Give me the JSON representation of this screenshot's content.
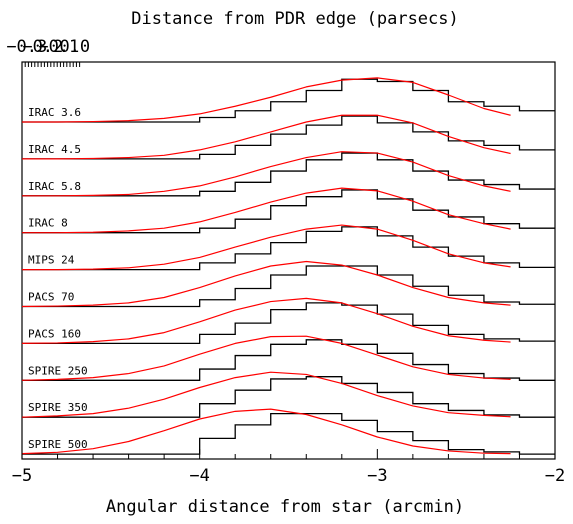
{
  "chart_data": {
    "type": "line",
    "title": "",
    "xlabel": "Angular distance from star (arcmin)",
    "x2label": "Distance from PDR edge (parsecs)",
    "ylabel": "",
    "xlim": [
      -5,
      -2
    ],
    "x_ticks": [
      -5,
      -4,
      -3,
      -2
    ],
    "x_tick_labels": [
      "−5",
      "−4",
      "−3",
      "−2"
    ],
    "x2_ticks": [
      -0.3,
      -0.2,
      -0.1,
      0.0
    ],
    "x2_tick_labels": [
      "−0.3",
      "−0.2",
      "−0.1",
      "0.0"
    ],
    "step_edges": [
      -5.0,
      -4.0,
      -3.8,
      -3.6,
      -3.4,
      -3.2,
      -3.0,
      -2.8,
      -2.6,
      -2.4,
      -2.2,
      -2.0
    ],
    "model_x": [
      -5.0,
      -4.8,
      -4.6,
      -4.4,
      -4.2,
      -4.0,
      -3.8,
      -3.6,
      -3.4,
      -3.2,
      -3.0,
      -2.8,
      -2.6,
      -2.4,
      -2.25
    ],
    "series": [
      {
        "name": "IRAC 3.6",
        "line_color": "#000000",
        "model_color": "#ff0000",
        "observed": [
          0.0,
          0.1,
          0.25,
          0.45,
          0.7,
          0.95,
          0.9,
          0.7,
          0.45,
          0.35,
          0.25
        ],
        "model": [
          0.0,
          0.0,
          0.01,
          0.03,
          0.08,
          0.18,
          0.35,
          0.55,
          0.78,
          0.93,
          0.98,
          0.88,
          0.6,
          0.3,
          0.15
        ]
      },
      {
        "name": "IRAC 4.5",
        "line_color": "#000000",
        "model_color": "#ff0000",
        "observed": [
          0.0,
          0.1,
          0.3,
          0.55,
          0.75,
          0.95,
          0.8,
          0.6,
          0.4,
          0.3,
          0.2
        ],
        "model": [
          0.0,
          0.0,
          0.01,
          0.03,
          0.08,
          0.2,
          0.38,
          0.6,
          0.82,
          0.97,
          0.97,
          0.8,
          0.5,
          0.25,
          0.12
        ]
      },
      {
        "name": "IRAC 5.8",
        "line_color": "#000000",
        "model_color": "#ff0000",
        "observed": [
          0.0,
          0.1,
          0.3,
          0.55,
          0.8,
          0.95,
          0.8,
          0.55,
          0.35,
          0.25,
          0.15
        ],
        "model": [
          0.0,
          0.0,
          0.01,
          0.03,
          0.1,
          0.22,
          0.42,
          0.65,
          0.85,
          0.98,
          0.95,
          0.75,
          0.45,
          0.22,
          0.1
        ]
      },
      {
        "name": "IRAC 8",
        "line_color": "#000000",
        "model_color": "#ff0000",
        "observed": [
          0.0,
          0.1,
          0.3,
          0.6,
          0.8,
          0.95,
          0.75,
          0.5,
          0.35,
          0.2,
          0.1
        ],
        "model": [
          0.0,
          0.0,
          0.01,
          0.04,
          0.1,
          0.24,
          0.45,
          0.68,
          0.88,
          0.99,
          0.93,
          0.7,
          0.4,
          0.2,
          0.08
        ]
      },
      {
        "name": "MIPS 24",
        "line_color": "#000000",
        "model_color": "#ff0000",
        "observed": [
          0.0,
          0.15,
          0.35,
          0.6,
          0.85,
          0.95,
          0.75,
          0.5,
          0.3,
          0.15,
          0.05
        ],
        "model": [
          0.0,
          0.0,
          0.01,
          0.04,
          0.12,
          0.27,
          0.5,
          0.72,
          0.9,
          0.99,
          0.9,
          0.65,
          0.35,
          0.15,
          0.06
        ]
      },
      {
        "name": "PACS 70",
        "line_color": "#000000",
        "model_color": "#ff0000",
        "observed": [
          0.0,
          0.15,
          0.4,
          0.7,
          0.9,
          0.9,
          0.7,
          0.45,
          0.25,
          0.1,
          0.05
        ],
        "model": [
          0.0,
          0.01,
          0.03,
          0.08,
          0.2,
          0.42,
          0.68,
          0.9,
          1.0,
          0.92,
          0.7,
          0.42,
          0.2,
          0.08,
          0.03
        ]
      },
      {
        "name": "PACS 160",
        "line_color": "#000000",
        "model_color": "#ff0000",
        "observed": [
          0.0,
          0.2,
          0.45,
          0.75,
          0.9,
          0.85,
          0.65,
          0.4,
          0.2,
          0.1,
          0.05
        ],
        "model": [
          0.0,
          0.01,
          0.04,
          0.1,
          0.24,
          0.48,
          0.74,
          0.93,
          1.0,
          0.9,
          0.66,
          0.38,
          0.17,
          0.07,
          0.03
        ]
      },
      {
        "name": "SPIRE 250",
        "line_color": "#000000",
        "model_color": "#ff0000",
        "observed": [
          0.0,
          0.25,
          0.55,
          0.8,
          0.9,
          0.8,
          0.6,
          0.35,
          0.15,
          0.05,
          0.0
        ],
        "model": [
          0.0,
          0.02,
          0.06,
          0.15,
          0.32,
          0.58,
          0.82,
          0.97,
          0.98,
          0.82,
          0.56,
          0.3,
          0.13,
          0.05,
          0.02
        ]
      },
      {
        "name": "SPIRE 350",
        "line_color": "#000000",
        "model_color": "#ff0000",
        "observed": [
          0.0,
          0.3,
          0.6,
          0.85,
          0.9,
          0.75,
          0.55,
          0.3,
          0.15,
          0.05,
          0.0
        ],
        "model": [
          0.0,
          0.03,
          0.08,
          0.2,
          0.4,
          0.66,
          0.88,
          1.0,
          0.95,
          0.75,
          0.48,
          0.25,
          0.1,
          0.04,
          0.01
        ]
      },
      {
        "name": "SPIRE 500",
        "line_color": "#000000",
        "model_color": "#ff0000",
        "observed": [
          0.0,
          0.35,
          0.65,
          0.9,
          0.9,
          0.75,
          0.5,
          0.3,
          0.1,
          0.05,
          0.0
        ],
        "model": [
          0.01,
          0.04,
          0.12,
          0.28,
          0.52,
          0.78,
          0.95,
          1.0,
          0.88,
          0.65,
          0.38,
          0.18,
          0.07,
          0.02,
          0.01
        ]
      }
    ],
    "grid": false,
    "legend": "none"
  }
}
